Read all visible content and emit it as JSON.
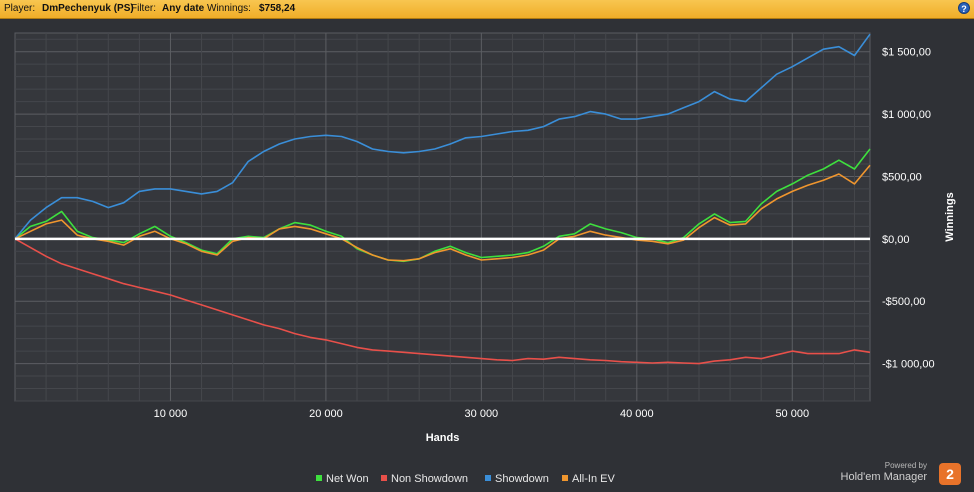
{
  "header": {
    "player_label": "Player:",
    "player_value": "DmPechenyuk (PS)",
    "filter_label": "Filter:",
    "filter_value": "Any date",
    "winnings_label": "Winnings:",
    "winnings_value": "$758,24",
    "help_glyph": "?"
  },
  "chart_data": {
    "type": "line",
    "xlabel": "Hands",
    "ylabel": "Winnings",
    "xlim": [
      0,
      55000
    ],
    "ylim": [
      -1300,
      1650
    ],
    "x_ticks": [
      10000,
      20000,
      30000,
      40000,
      50000
    ],
    "x_tick_labels": [
      "10 000",
      "20 000",
      "30 000",
      "40 000",
      "50 000"
    ],
    "y_ticks": [
      1500,
      1000,
      500,
      0,
      -500,
      -1000
    ],
    "y_tick_labels": [
      "$1 500,00",
      "$1 000,00",
      "$500,00",
      "$0,00",
      "-$500,00",
      "-$1 000,00"
    ],
    "grid": true,
    "legend_position": "bottom-center",
    "x": [
      0,
      1000,
      2000,
      3000,
      4000,
      5000,
      6000,
      7000,
      8000,
      9000,
      10000,
      11000,
      12000,
      13000,
      14000,
      15000,
      16000,
      17000,
      18000,
      19000,
      20000,
      21000,
      22000,
      23000,
      24000,
      25000,
      26000,
      27000,
      28000,
      29000,
      30000,
      31000,
      32000,
      33000,
      34000,
      35000,
      36000,
      37000,
      38000,
      39000,
      40000,
      41000,
      42000,
      43000,
      44000,
      45000,
      46000,
      47000,
      48000,
      49000,
      50000,
      51000,
      52000,
      53000,
      54000,
      55000
    ],
    "series": [
      {
        "name": "Net Won",
        "color": "#3ee03e",
        "values": [
          0,
          100,
          140,
          220,
          60,
          10,
          -10,
          -30,
          40,
          100,
          20,
          -30,
          -90,
          -120,
          0,
          20,
          10,
          80,
          130,
          110,
          60,
          20,
          -80,
          -130,
          -170,
          -180,
          -160,
          -100,
          -60,
          -110,
          -150,
          -140,
          -130,
          -110,
          -60,
          20,
          40,
          120,
          80,
          50,
          10,
          0,
          -30,
          10,
          120,
          200,
          130,
          140,
          280,
          380,
          440,
          510,
          560,
          630,
          560,
          720
        ]
      },
      {
        "name": "Non Showdown",
        "color": "#e8504a",
        "values": [
          0,
          -70,
          -140,
          -200,
          -240,
          -280,
          -320,
          -360,
          -390,
          -420,
          -450,
          -490,
          -530,
          -570,
          -610,
          -650,
          -690,
          -720,
          -760,
          -790,
          -810,
          -840,
          -870,
          -890,
          -900,
          -910,
          -920,
          -930,
          -940,
          -950,
          -960,
          -970,
          -975,
          -960,
          -965,
          -950,
          -960,
          -970,
          -975,
          -985,
          -990,
          -995,
          -990,
          -995,
          -1000,
          -980,
          -970,
          -950,
          -960,
          -930,
          -900,
          -920,
          -920,
          -920,
          -890,
          -910
        ]
      },
      {
        "name": "Showdown",
        "color": "#3a8ed8",
        "values": [
          0,
          150,
          250,
          330,
          330,
          300,
          250,
          290,
          380,
          400,
          400,
          380,
          360,
          380,
          450,
          620,
          700,
          760,
          800,
          820,
          830,
          820,
          780,
          720,
          700,
          690,
          700,
          720,
          760,
          810,
          820,
          840,
          860,
          870,
          900,
          960,
          980,
          1020,
          1000,
          960,
          960,
          980,
          1000,
          1050,
          1100,
          1180,
          1120,
          1100,
          1210,
          1320,
          1380,
          1450,
          1520,
          1540,
          1470,
          1640
        ]
      },
      {
        "name": "All-In EV",
        "color": "#f0962e",
        "values": [
          0,
          60,
          120,
          150,
          30,
          0,
          -20,
          -50,
          20,
          60,
          0,
          -40,
          -100,
          -130,
          -20,
          10,
          0,
          80,
          100,
          80,
          40,
          0,
          -70,
          -130,
          -170,
          -175,
          -160,
          -110,
          -80,
          -130,
          -170,
          -160,
          -150,
          -130,
          -90,
          0,
          20,
          60,
          30,
          10,
          -10,
          -20,
          -40,
          -10,
          90,
          170,
          110,
          120,
          240,
          320,
          380,
          430,
          470,
          520,
          440,
          590
        ]
      }
    ]
  },
  "legend": [
    {
      "label": "Net Won",
      "color": "#3ee03e"
    },
    {
      "label": "Non Showdown",
      "color": "#e8504a"
    },
    {
      "label": "Showdown",
      "color": "#3a8ed8"
    },
    {
      "label": "All-In EV",
      "color": "#f0962e"
    }
  ],
  "branding": {
    "powered_by": "Powered by",
    "product": "Hold'em Manager",
    "logo_glyph": "2"
  }
}
